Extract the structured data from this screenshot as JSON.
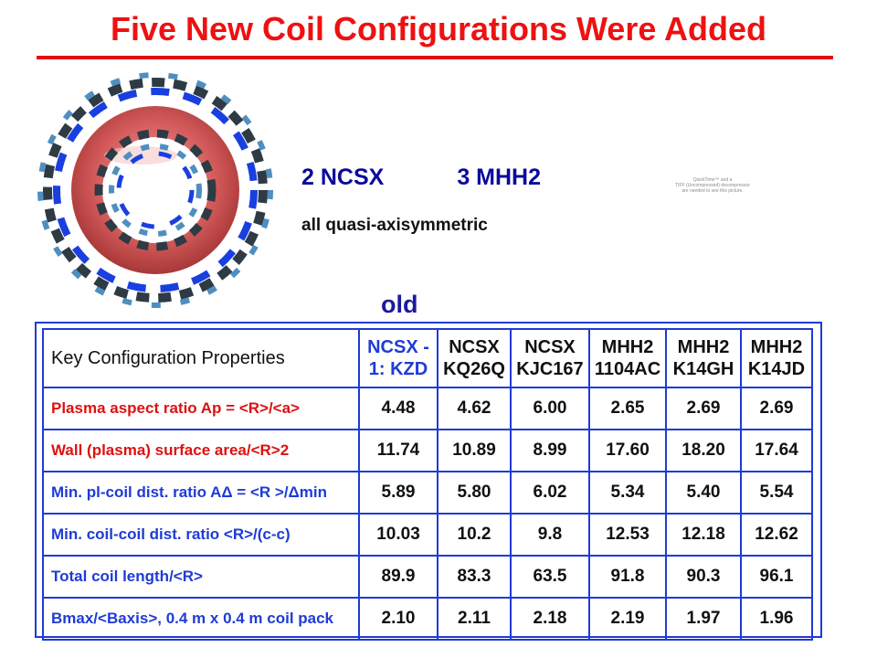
{
  "title": "Five New Coil Configurations Were Added",
  "summary": {
    "ncsx_count": "2 NCSX",
    "mhh2_count": "3 MHH2",
    "note": "all quasi-axisymmetric"
  },
  "quicktime_placeholder": {
    "line1": "QuickTime™ and a",
    "line2": "TIFF (Uncompressed) decompressor",
    "line3": "are needed to see this picture."
  },
  "old_label": "old",
  "table": {
    "header_key": "Key Configuration Properties",
    "columns": [
      {
        "line1": "NCSX -",
        "line2": "1: KZD"
      },
      {
        "line1": "NCSX",
        "line2": "KQ26Q"
      },
      {
        "line1": "NCSX",
        "line2": "KJC167"
      },
      {
        "line1": "MHH2",
        "line2": "1104AC"
      },
      {
        "line1": "MHH2",
        "line2": "K14GH"
      },
      {
        "line1": "MHH2",
        "line2": "K14JD"
      }
    ],
    "rows": [
      {
        "label": "Plasma aspect ratio  Ap = <R>/<a>",
        "values": [
          "4.48",
          "4.62",
          "6.00",
          "2.65",
          "2.69",
          "2.69"
        ]
      },
      {
        "label": "Wall (plasma) surface area/<R>2",
        "values": [
          "11.74",
          "10.89",
          "8.99",
          "17.60",
          "18.20",
          "17.64"
        ]
      },
      {
        "label": "Min. pl-coil dist. ratio  AΔ = <R >/Δmin",
        "values": [
          "5.89",
          "5.80",
          "6.02",
          "5.34",
          "5.40",
          "5.54"
        ]
      },
      {
        "label": "Min. coil-coil dist. ratio  <R>/(c-c)",
        "values": [
          "10.03",
          "10.2",
          "9.8",
          "12.53",
          "12.18",
          "12.62"
        ]
      },
      {
        "label": "Total coil length/<R>",
        "values": [
          "89.9",
          "83.3",
          "63.5",
          "91.8",
          "90.3",
          "96.1"
        ]
      },
      {
        "label": "Bmax/<Baxis>, 0.4 m x 0.4 m coil pack",
        "values": [
          "2.10",
          "2.11",
          "2.18",
          "2.19",
          "1.97",
          "1.96"
        ]
      }
    ]
  },
  "colors": {
    "title_red": "#ee1111",
    "table_blue": "#1f3bd6",
    "torus": "#d45a5a",
    "coil_dark": "#2e3b44",
    "coil_blue": "#1a3fe0",
    "coil_light": "#4f8fc0"
  }
}
